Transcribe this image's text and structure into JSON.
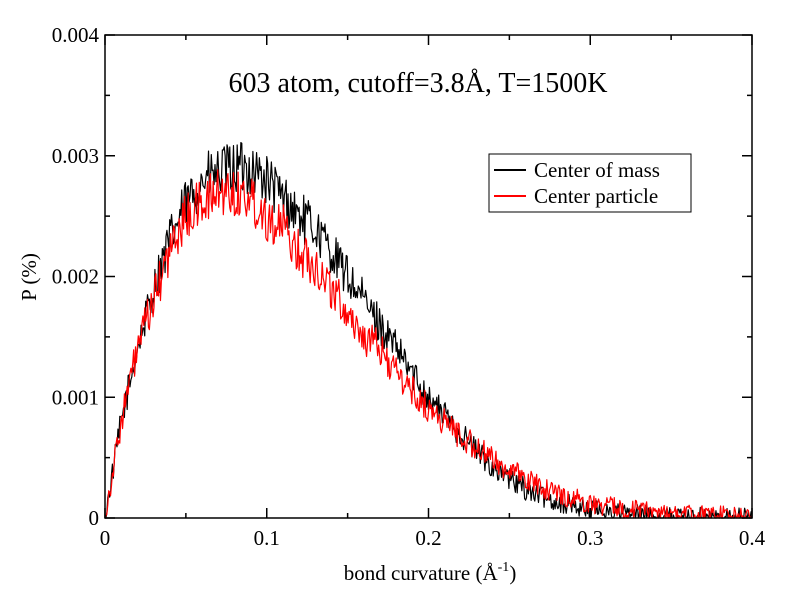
{
  "chart_data": {
    "type": "line",
    "title": "603 atom, cutoff=3.8Å, T=1500K",
    "xlabel": "bond curvature (Å",
    "xlabel_sup": "-1",
    "xlabel_close": ")",
    "ylabel": "P (%)",
    "xlim": [
      0,
      0.4
    ],
    "ylim": [
      0,
      0.004
    ],
    "xticks": [
      0,
      0.1,
      0.2,
      0.3,
      0.4
    ],
    "xtick_labels": [
      "0",
      "0.1",
      "0.2",
      "0.3",
      "0.4"
    ],
    "yticks": [
      0,
      0.001,
      0.002,
      0.003,
      0.004
    ],
    "ytick_labels": [
      "0",
      "0.001",
      "0.002",
      "0.003",
      "0.004"
    ],
    "grid": false,
    "legend_position": "top-right",
    "series": [
      {
        "name": "Center of mass",
        "color": "#000000",
        "x": [
          0,
          0.005,
          0.01,
          0.02,
          0.03,
          0.04,
          0.05,
          0.06,
          0.07,
          0.08,
          0.09,
          0.1,
          0.11,
          0.12,
          0.13,
          0.14,
          0.15,
          0.16,
          0.17,
          0.18,
          0.19,
          0.2,
          0.21,
          0.22,
          0.23,
          0.24,
          0.25,
          0.26,
          0.27,
          0.28,
          0.29,
          0.3,
          0.32,
          0.34,
          0.36,
          0.38,
          0.4
        ],
        "y": [
          0,
          0.0004,
          0.0008,
          0.0014,
          0.0019,
          0.0023,
          0.0026,
          0.0028,
          0.00285,
          0.0029,
          0.0029,
          0.0028,
          0.00265,
          0.0025,
          0.0024,
          0.0022,
          0.002,
          0.0018,
          0.0016,
          0.0014,
          0.0012,
          0.001,
          0.00085,
          0.0007,
          0.00055,
          0.00042,
          0.00032,
          0.00024,
          0.00018,
          0.00013,
          0.0001,
          7e-05,
          4e-05,
          2e-05,
          1e-05,
          5e-06,
          2e-06
        ]
      },
      {
        "name": "Center particle",
        "color": "#ff0000",
        "x": [
          0,
          0.005,
          0.01,
          0.02,
          0.03,
          0.04,
          0.05,
          0.06,
          0.07,
          0.08,
          0.09,
          0.1,
          0.11,
          0.12,
          0.13,
          0.14,
          0.15,
          0.16,
          0.17,
          0.18,
          0.19,
          0.2,
          0.21,
          0.22,
          0.23,
          0.24,
          0.25,
          0.26,
          0.27,
          0.28,
          0.29,
          0.3,
          0.32,
          0.34,
          0.36,
          0.38,
          0.4
        ],
        "y": [
          0,
          0.0004,
          0.0008,
          0.0014,
          0.0018,
          0.0022,
          0.0025,
          0.0026,
          0.0027,
          0.0027,
          0.00265,
          0.0025,
          0.0024,
          0.0022,
          0.0021,
          0.0019,
          0.0017,
          0.0015,
          0.0014,
          0.0012,
          0.00105,
          0.0009,
          0.0008,
          0.00068,
          0.00058,
          0.00048,
          0.0004,
          0.00032,
          0.00026,
          0.0002,
          0.00016,
          0.00012,
          8e-05,
          5e-05,
          3e-05,
          2e-05,
          1e-05
        ]
      }
    ]
  }
}
